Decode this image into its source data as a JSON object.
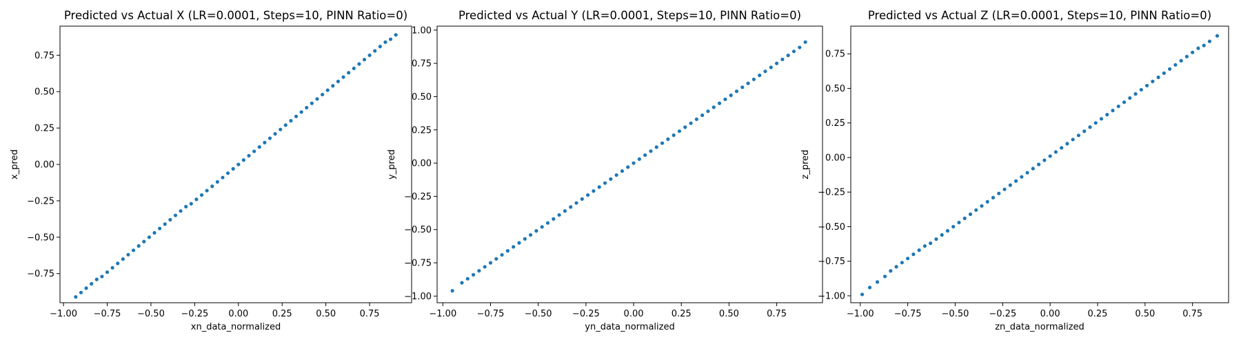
{
  "figure": {
    "marker_color": "#1f77b4",
    "background": "#ffffff"
  },
  "chart_data": [
    {
      "type": "scatter",
      "title": "Predicted vs Actual X (LR=0.0001, Steps=10, PINN Ratio=0)",
      "xlabel": "xn_data_normalized",
      "ylabel": "x_pred",
      "xlim": [
        -1.02,
        0.99
      ],
      "ylim": [
        -0.95,
        0.95
      ],
      "xticks": [
        -1.0,
        -0.75,
        -0.5,
        -0.25,
        0.0,
        0.25,
        0.5,
        0.75
      ],
      "xtick_labels": [
        "−1.00",
        "−0.75",
        "−0.50",
        "−0.25",
        "0.00",
        "0.25",
        "0.50",
        "0.75"
      ],
      "yticks": [
        -0.75,
        -0.5,
        -0.25,
        0.0,
        0.25,
        0.5,
        0.75
      ],
      "ytick_labels": [
        "−0.75",
        "−0.50",
        "−0.25",
        "0.00",
        "0.25",
        "0.50",
        "0.75"
      ],
      "series": [
        {
          "color": "#1f77b4",
          "points": [
            [
              -0.93,
              -0.91
            ],
            [
              -0.9,
              -0.88
            ],
            [
              -0.87,
              -0.85
            ],
            [
              -0.84,
              -0.82
            ],
            [
              -0.81,
              -0.79
            ],
            [
              -0.78,
              -0.77
            ],
            [
              -0.75,
              -0.74
            ],
            [
              -0.72,
              -0.71
            ],
            [
              -0.69,
              -0.68
            ],
            [
              -0.66,
              -0.65
            ],
            [
              -0.63,
              -0.62
            ],
            [
              -0.6,
              -0.59
            ],
            [
              -0.57,
              -0.56
            ],
            [
              -0.54,
              -0.53
            ],
            [
              -0.51,
              -0.5
            ],
            [
              -0.48,
              -0.47
            ],
            [
              -0.45,
              -0.44
            ],
            [
              -0.42,
              -0.41
            ],
            [
              -0.39,
              -0.38
            ],
            [
              -0.36,
              -0.35
            ],
            [
              -0.33,
              -0.32
            ],
            [
              -0.3,
              -0.29
            ],
            [
              -0.27,
              -0.27
            ],
            [
              -0.24,
              -0.24
            ],
            [
              -0.21,
              -0.21
            ],
            [
              -0.18,
              -0.18
            ],
            [
              -0.15,
              -0.15
            ],
            [
              -0.12,
              -0.12
            ],
            [
              -0.09,
              -0.09
            ],
            [
              -0.06,
              -0.06
            ],
            [
              -0.03,
              -0.03
            ],
            [
              0.0,
              0.0
            ],
            [
              0.03,
              0.03
            ],
            [
              0.06,
              0.06
            ],
            [
              0.09,
              0.09
            ],
            [
              0.12,
              0.12
            ],
            [
              0.15,
              0.15
            ],
            [
              0.18,
              0.18
            ],
            [
              0.21,
              0.21
            ],
            [
              0.24,
              0.24
            ],
            [
              0.27,
              0.27
            ],
            [
              0.3,
              0.3
            ],
            [
              0.33,
              0.33
            ],
            [
              0.36,
              0.36
            ],
            [
              0.39,
              0.39
            ],
            [
              0.42,
              0.42
            ],
            [
              0.45,
              0.45
            ],
            [
              0.48,
              0.48
            ],
            [
              0.51,
              0.51
            ],
            [
              0.54,
              0.54
            ],
            [
              0.57,
              0.57
            ],
            [
              0.6,
              0.6
            ],
            [
              0.63,
              0.63
            ],
            [
              0.66,
              0.66
            ],
            [
              0.69,
              0.69
            ],
            [
              0.72,
              0.72
            ],
            [
              0.75,
              0.75
            ],
            [
              0.78,
              0.78
            ],
            [
              0.81,
              0.81
            ],
            [
              0.84,
              0.84
            ],
            [
              0.87,
              0.86
            ],
            [
              0.9,
              0.89
            ]
          ]
        }
      ]
    },
    {
      "type": "scatter",
      "title": "Predicted vs Actual Y (LR=0.0001, Steps=10, PINN Ratio=0)",
      "xlabel": "yn_data_normalized",
      "ylabel": "y_pred",
      "xlim": [
        -1.03,
        0.99
      ],
      "ylim": [
        -1.05,
        1.03
      ],
      "xticks": [
        -1.0,
        -0.75,
        -0.5,
        -0.25,
        0.0,
        0.25,
        0.5,
        0.75
      ],
      "xtick_labels": [
        "−1.00",
        "−0.75",
        "−0.50",
        "−0.25",
        "0.00",
        "0.25",
        "0.50",
        "0.75"
      ],
      "yticks": [
        -1.0,
        -0.75,
        -0.5,
        -0.25,
        0.0,
        0.25,
        0.5,
        0.75,
        1.0
      ],
      "ytick_labels": [
        "−1.00",
        "−0.75",
        "−0.50",
        "−0.25",
        "0.00",
        "0.25",
        "0.50",
        "0.75",
        "1.00"
      ],
      "series": [
        {
          "color": "#1f77b4",
          "points": [
            [
              -0.95,
              -0.96
            ],
            [
              -0.9,
              -0.9
            ],
            [
              -0.87,
              -0.87
            ],
            [
              -0.84,
              -0.84
            ],
            [
              -0.81,
              -0.81
            ],
            [
              -0.78,
              -0.78
            ],
            [
              -0.75,
              -0.75
            ],
            [
              -0.72,
              -0.72
            ],
            [
              -0.69,
              -0.69
            ],
            [
              -0.66,
              -0.66
            ],
            [
              -0.63,
              -0.63
            ],
            [
              -0.6,
              -0.6
            ],
            [
              -0.57,
              -0.57
            ],
            [
              -0.54,
              -0.54
            ],
            [
              -0.51,
              -0.51
            ],
            [
              -0.48,
              -0.48
            ],
            [
              -0.45,
              -0.45
            ],
            [
              -0.42,
              -0.42
            ],
            [
              -0.39,
              -0.39
            ],
            [
              -0.36,
              -0.36
            ],
            [
              -0.33,
              -0.33
            ],
            [
              -0.3,
              -0.3
            ],
            [
              -0.27,
              -0.27
            ],
            [
              -0.24,
              -0.24
            ],
            [
              -0.21,
              -0.21
            ],
            [
              -0.18,
              -0.18
            ],
            [
              -0.15,
              -0.15
            ],
            [
              -0.12,
              -0.12
            ],
            [
              -0.09,
              -0.09
            ],
            [
              -0.06,
              -0.06
            ],
            [
              -0.03,
              -0.03
            ],
            [
              0.0,
              0.0
            ],
            [
              0.03,
              0.03
            ],
            [
              0.06,
              0.06
            ],
            [
              0.09,
              0.09
            ],
            [
              0.12,
              0.12
            ],
            [
              0.15,
              0.15
            ],
            [
              0.18,
              0.18
            ],
            [
              0.21,
              0.21
            ],
            [
              0.24,
              0.24
            ],
            [
              0.27,
              0.27
            ],
            [
              0.3,
              0.3
            ],
            [
              0.33,
              0.33
            ],
            [
              0.36,
              0.36
            ],
            [
              0.39,
              0.39
            ],
            [
              0.42,
              0.42
            ],
            [
              0.45,
              0.45
            ],
            [
              0.48,
              0.48
            ],
            [
              0.51,
              0.51
            ],
            [
              0.54,
              0.54
            ],
            [
              0.57,
              0.57
            ],
            [
              0.6,
              0.6
            ],
            [
              0.63,
              0.63
            ],
            [
              0.66,
              0.66
            ],
            [
              0.69,
              0.69
            ],
            [
              0.72,
              0.72
            ],
            [
              0.75,
              0.75
            ],
            [
              0.78,
              0.78
            ],
            [
              0.81,
              0.81
            ],
            [
              0.84,
              0.84
            ],
            [
              0.87,
              0.87
            ],
            [
              0.9,
              0.91
            ]
          ]
        }
      ]
    },
    {
      "type": "scatter",
      "title": "Predicted vs Actual Z (LR=0.0001, Steps=10, PINN Ratio=0)",
      "xlabel": "zn_data_normalized",
      "ylabel": "z_pred",
      "xlim": [
        -1.05,
        0.94
      ],
      "ylim": [
        -1.05,
        0.95
      ],
      "xticks": [
        -1.0,
        -0.75,
        -0.5,
        -0.25,
        0.0,
        0.25,
        0.5,
        0.75
      ],
      "xtick_labels": [
        "−1.00",
        "−0.75",
        "−0.50",
        "−0.25",
        "0.00",
        "0.25",
        "0.50",
        "0.75"
      ],
      "yticks": [
        -1.0,
        -0.75,
        -0.5,
        -0.25,
        0.0,
        0.25,
        0.5,
        0.75
      ],
      "ytick_labels": [
        "−1.00",
        "−0.75",
        "−0.50",
        "−0.25",
        "0.00",
        "0.25",
        "0.50",
        "0.75"
      ],
      "series": [
        {
          "color": "#1f77b4",
          "points": [
            [
              -0.99,
              -0.99
            ],
            [
              -0.95,
              -0.94
            ],
            [
              -0.91,
              -0.9
            ],
            [
              -0.87,
              -0.86
            ],
            [
              -0.84,
              -0.82
            ],
            [
              -0.81,
              -0.79
            ],
            [
              -0.78,
              -0.76
            ],
            [
              -0.75,
              -0.73
            ],
            [
              -0.72,
              -0.7
            ],
            [
              -0.69,
              -0.67
            ],
            [
              -0.66,
              -0.64
            ],
            [
              -0.63,
              -0.62
            ],
            [
              -0.6,
              -0.59
            ],
            [
              -0.57,
              -0.56
            ],
            [
              -0.54,
              -0.53
            ],
            [
              -0.51,
              -0.5
            ],
            [
              -0.48,
              -0.47
            ],
            [
              -0.45,
              -0.44
            ],
            [
              -0.42,
              -0.41
            ],
            [
              -0.39,
              -0.38
            ],
            [
              -0.36,
              -0.35
            ],
            [
              -0.33,
              -0.32
            ],
            [
              -0.3,
              -0.29
            ],
            [
              -0.27,
              -0.26
            ],
            [
              -0.24,
              -0.23
            ],
            [
              -0.21,
              -0.2
            ],
            [
              -0.18,
              -0.17
            ],
            [
              -0.15,
              -0.14
            ],
            [
              -0.12,
              -0.11
            ],
            [
              -0.09,
              -0.08
            ],
            [
              -0.06,
              -0.05
            ],
            [
              -0.03,
              -0.02
            ],
            [
              0.0,
              0.01
            ],
            [
              0.03,
              0.04
            ],
            [
              0.06,
              0.07
            ],
            [
              0.09,
              0.1
            ],
            [
              0.12,
              0.13
            ],
            [
              0.15,
              0.16
            ],
            [
              0.18,
              0.19
            ],
            [
              0.21,
              0.22
            ],
            [
              0.24,
              0.25
            ],
            [
              0.27,
              0.28
            ],
            [
              0.3,
              0.31
            ],
            [
              0.33,
              0.34
            ],
            [
              0.36,
              0.37
            ],
            [
              0.39,
              0.4
            ],
            [
              0.42,
              0.43
            ],
            [
              0.45,
              0.46
            ],
            [
              0.48,
              0.49
            ],
            [
              0.51,
              0.52
            ],
            [
              0.54,
              0.55
            ],
            [
              0.57,
              0.58
            ],
            [
              0.6,
              0.61
            ],
            [
              0.63,
              0.64
            ],
            [
              0.66,
              0.67
            ],
            [
              0.69,
              0.7
            ],
            [
              0.72,
              0.73
            ],
            [
              0.75,
              0.76
            ],
            [
              0.78,
              0.79
            ],
            [
              0.81,
              0.81
            ],
            [
              0.84,
              0.84
            ],
            [
              0.88,
              0.88
            ]
          ]
        }
      ]
    }
  ]
}
